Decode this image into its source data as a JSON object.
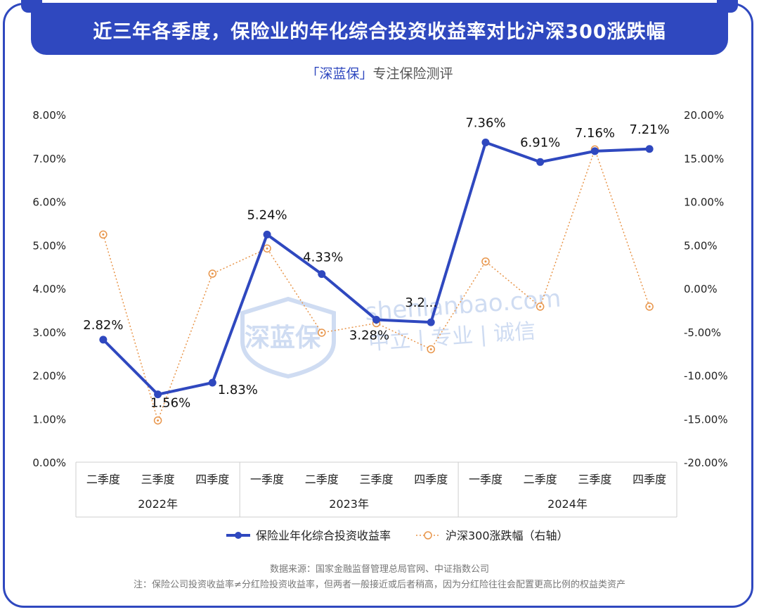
{
  "header": {
    "title": "近三年各季度，保险业的年化综合投资收益率对比沪深300涨跌幅",
    "subtitle_brand": "「深蓝保」",
    "subtitle_rest": "专注保险测评"
  },
  "watermark": {
    "logo": "深蓝保",
    "url": "shenlanbao.com",
    "slogan": "中立 | 专业 | 诚信"
  },
  "chart_data": {
    "type": "line",
    "categories": [
      "二季度",
      "三季度",
      "四季度",
      "一季度",
      "二季度",
      "三季度",
      "四季度",
      "一季度",
      "二季度",
      "三季度",
      "四季度"
    ],
    "year_groups": [
      {
        "label": "2022年",
        "count": 3
      },
      {
        "label": "2023年",
        "count": 4
      },
      {
        "label": "2024年",
        "count": 4
      }
    ],
    "left_axis": {
      "ticks": [
        "0.00%",
        "1.00%",
        "2.00%",
        "3.00%",
        "4.00%",
        "5.00%",
        "6.00%",
        "7.00%",
        "8.00%"
      ],
      "range": [
        0,
        8
      ]
    },
    "right_axis": {
      "ticks": [
        "-20.00%",
        "-15.00%",
        "-10.00%",
        "-5.00%",
        "0.00%",
        "5.00%",
        "10.00%",
        "15.00%",
        "20.00%"
      ],
      "range": [
        -20,
        20
      ]
    },
    "series": [
      {
        "name": "保险业年化综合投资收益率",
        "axis": "left",
        "color": "#2f48bf",
        "values": [
          2.82,
          1.56,
          1.83,
          5.24,
          4.33,
          3.28,
          3.22,
          7.36,
          6.91,
          7.16,
          7.21
        ],
        "labels": [
          "2.82%",
          "1.56%",
          "1.83%",
          "5.24%",
          "4.33%",
          "3.28%",
          "3.2...",
          "7.36%",
          "6.91%",
          "7.16%",
          "7.21%"
        ]
      },
      {
        "name": "沪深300涨跌幅（右轴）",
        "axis": "right",
        "color": "#e8954a",
        "values": [
          6.2,
          -15.2,
          1.7,
          4.6,
          -5.1,
          -4.0,
          -7.0,
          3.1,
          -2.1,
          16.0,
          -2.1
        ]
      }
    ]
  },
  "footer": {
    "source": "数据来源：国家金融监督管理总局官网、中证指数公司",
    "note": "注：保险公司投资收益率≠分红险投资收益率，但两者一般接近或后者稍高，因为分红险往往会配置更高比例的权益类资产"
  }
}
